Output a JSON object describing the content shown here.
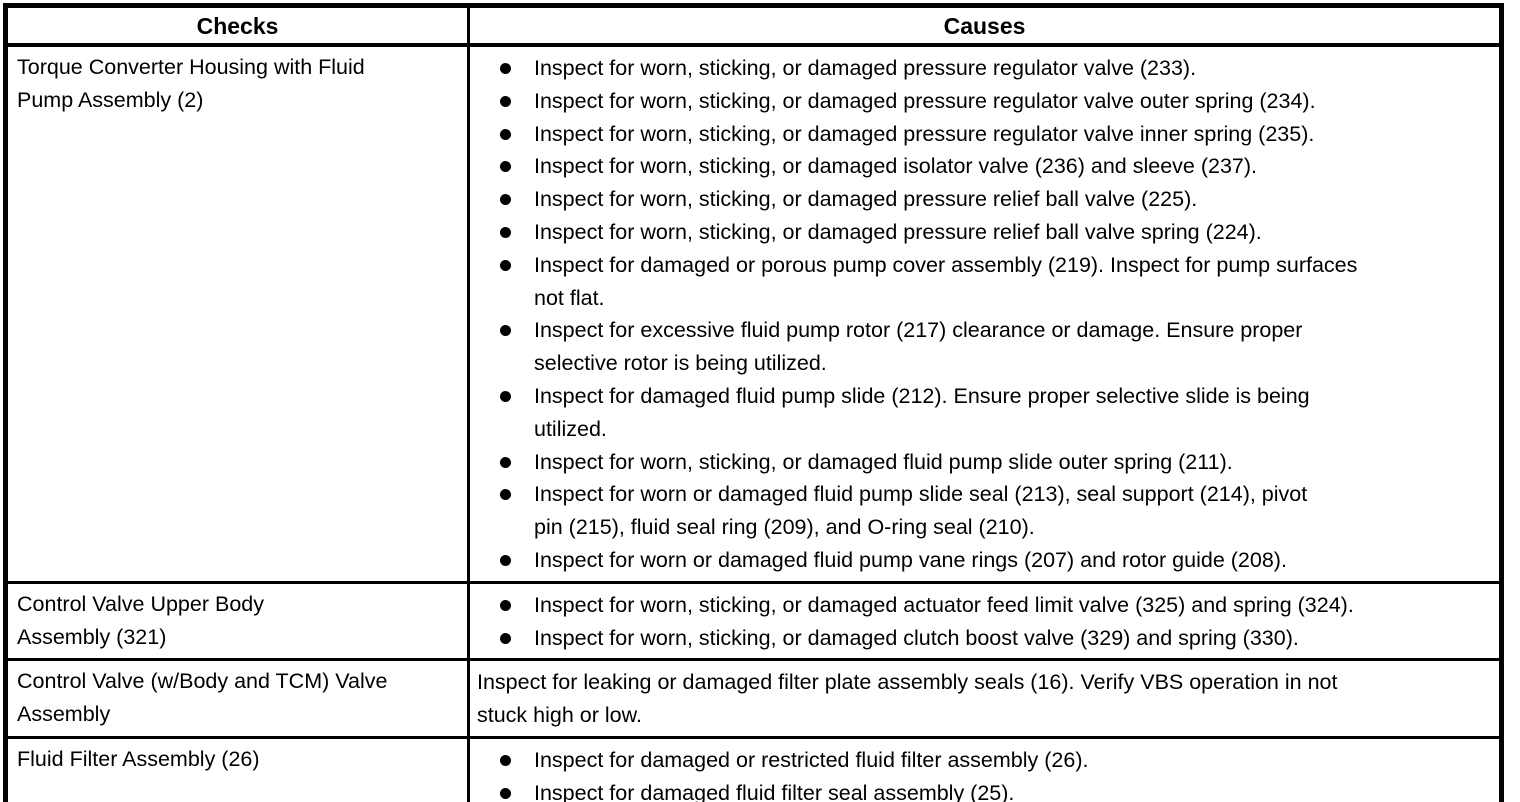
{
  "colors": {
    "border": "#000000",
    "text": "#000000",
    "background": "#ffffff"
  },
  "table": {
    "headers": {
      "checks": "Checks",
      "causes": "Causes"
    },
    "rows": [
      {
        "check": "Torque Converter Housing with Fluid\nPump Assembly (2)",
        "causes": [
          "Inspect for worn, sticking, or damaged pressure regulator valve (233).",
          "Inspect for worn, sticking, or damaged pressure regulator valve outer spring (234).",
          "Inspect for worn, sticking, or damaged pressure regulator valve inner spring (235).",
          "Inspect for worn, sticking, or damaged isolator valve (236) and sleeve (237).",
          "Inspect for worn, sticking, or damaged pressure relief ball valve (225).",
          "Inspect for worn, sticking, or damaged pressure relief ball valve spring (224).",
          "Inspect for damaged or porous pump cover assembly (219). Inspect for pump surfaces\nnot flat.",
          "Inspect for excessive fluid pump rotor (217) clearance or damage. Ensure proper\nselective rotor is being utilized.",
          "Inspect for damaged fluid pump slide (212). Ensure proper selective slide is being\nutilized.",
          "Inspect for worn, sticking, or damaged fluid pump slide outer spring (211).",
          "Inspect for worn or damaged fluid pump slide seal (213), seal support (214), pivot\npin (215), fluid seal ring (209), and O-ring seal (210).",
          "Inspect for worn or damaged fluid pump vane rings (207) and rotor guide (208)."
        ]
      },
      {
        "check": "Control Valve Upper Body\nAssembly (321)",
        "causes": [
          "Inspect for worn, sticking, or damaged actuator feed limit valve (325) and spring (324).",
          "Inspect for worn, sticking, or damaged clutch boost valve (329) and spring (330)."
        ]
      },
      {
        "check": "Control Valve (w/Body and TCM) Valve\nAssembly",
        "causes_text": "Inspect for leaking or damaged filter plate assembly seals (16). Verify VBS operation in not\nstuck high or low."
      },
      {
        "check": "Fluid Filter Assembly (26)",
        "causes": [
          "Inspect for damaged or restricted fluid filter assembly (26).",
          "Inspect for damaged fluid filter seal assembly (25)."
        ]
      }
    ]
  }
}
